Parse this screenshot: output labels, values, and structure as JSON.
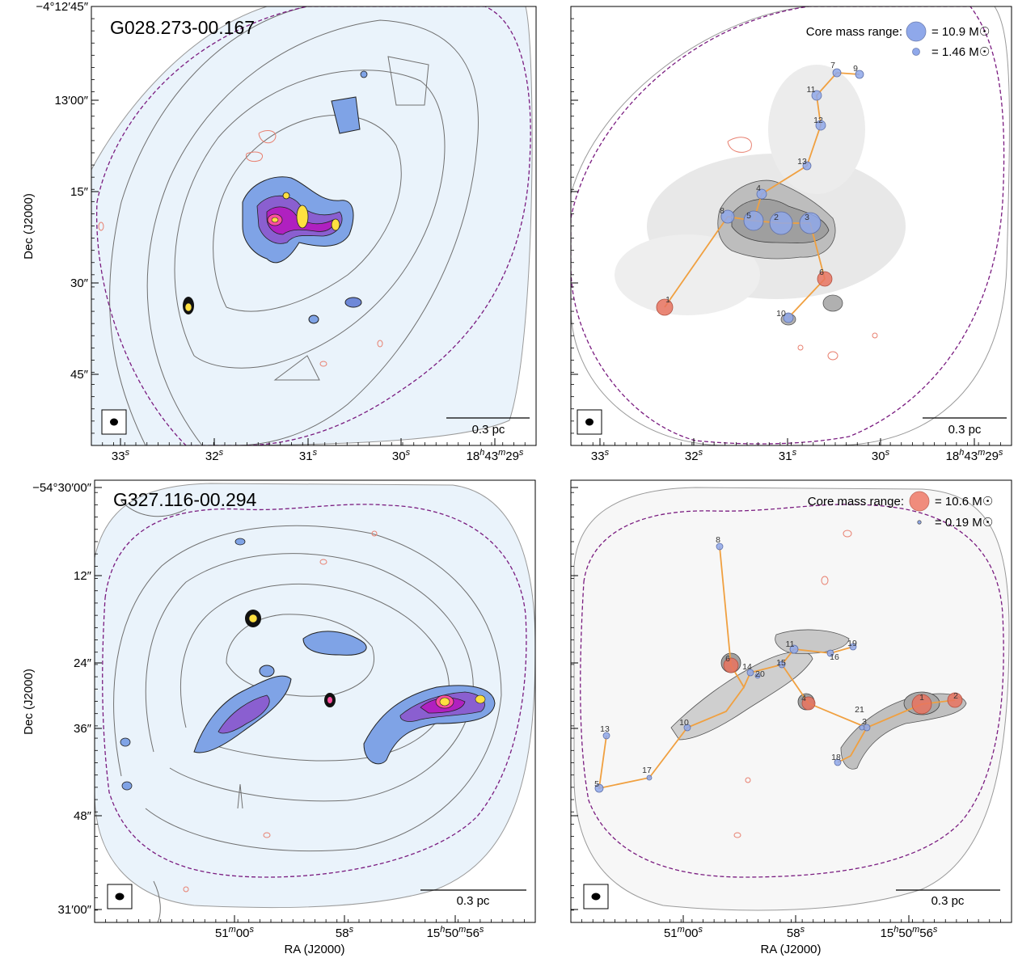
{
  "figure": {
    "panels": [
      {
        "id": "top-left",
        "title": "G028.273-00.167",
        "scalebar": "0.3 pc",
        "dec_ticks": [
          "−4°12′45″",
          "13′00″",
          "15″",
          "30″",
          "45″"
        ],
        "dec_values": [
          0,
          15,
          30,
          45,
          60
        ],
        "ra_ticks": [
          {
            "main": "33",
            "sup": "s"
          },
          {
            "main": "32",
            "sup": "s"
          },
          {
            "main": "31",
            "sup": "s"
          },
          {
            "main": "30",
            "sup": "s"
          },
          {
            "main": "18h43m29",
            "sup": "s"
          }
        ]
      },
      {
        "id": "top-right",
        "scalebar": "0.3 pc",
        "legend": {
          "label": "Core mass range:",
          "max": "= 10.9 M☉",
          "min": "= 1.46 M☉",
          "max_color": "#8fa8ea",
          "min_color": "#8fa8ea"
        },
        "ra_ticks": [
          {
            "main": "33",
            "sup": "s"
          },
          {
            "main": "32",
            "sup": "s"
          },
          {
            "main": "31",
            "sup": "s"
          },
          {
            "main": "30",
            "sup": "s"
          },
          {
            "main": "18h43m29",
            "sup": "s"
          }
        ],
        "cores": [
          {
            "id": "1",
            "color": "#e8735f"
          },
          {
            "id": "2",
            "color": "#8fa8ea"
          },
          {
            "id": "3",
            "color": "#8fa8ea"
          },
          {
            "id": "4",
            "color": "#8fa8ea"
          },
          {
            "id": "5",
            "color": "#8fa8ea"
          },
          {
            "id": "6",
            "color": "#e8735f"
          },
          {
            "id": "7",
            "color": "#8fa8ea"
          },
          {
            "id": "8",
            "color": "#8fa8ea"
          },
          {
            "id": "9",
            "color": "#8fa8ea"
          },
          {
            "id": "10",
            "color": "#8fa8ea"
          },
          {
            "id": "11",
            "color": "#8fa8ea"
          },
          {
            "id": "12",
            "color": "#8fa8ea"
          },
          {
            "id": "13",
            "color": "#8fa8ea"
          }
        ]
      },
      {
        "id": "bottom-left",
        "title": "G327.116-00.294",
        "scalebar": "0.3 pc",
        "dec_ticks": [
          "−54°30′00″",
          "12″",
          "24″",
          "36″",
          "48″",
          "31′00″"
        ],
        "dec_values": [
          0,
          12,
          24,
          36,
          48,
          60
        ],
        "ra_ticks": [
          {
            "main": "51m00",
            "sup": "s"
          },
          {
            "main": "58",
            "sup": "s"
          },
          {
            "main": "15h50m56",
            "sup": "s"
          }
        ]
      },
      {
        "id": "bottom-right",
        "scalebar": "0.3 pc",
        "legend": {
          "label": "Core mass range:",
          "max": "= 10.6 M☉",
          "min": "= 0.19 M☉",
          "max_color": "#f08c7c",
          "min_color": "#8fa8ea"
        },
        "ra_ticks": [
          {
            "main": "51m00",
            "sup": "s"
          },
          {
            "main": "58",
            "sup": "s"
          },
          {
            "main": "15h50m56",
            "sup": "s"
          }
        ],
        "cores": [
          {
            "id": "1",
            "color": "#e8735f"
          },
          {
            "id": "2",
            "color": "#e8735f"
          },
          {
            "id": "3",
            "color": "#8fa8ea"
          },
          {
            "id": "4",
            "color": "#e8735f"
          },
          {
            "id": "5",
            "color": "#8fa8ea"
          },
          {
            "id": "6",
            "color": "#e8735f"
          },
          {
            "id": "8",
            "color": "#8fa8ea"
          },
          {
            "id": "10",
            "color": "#8fa8ea"
          },
          {
            "id": "11",
            "color": "#8fa8ea"
          },
          {
            "id": "13",
            "color": "#8fa8ea"
          },
          {
            "id": "14",
            "color": "#8fa8ea"
          },
          {
            "id": "15",
            "color": "#8fa8ea"
          },
          {
            "id": "16",
            "color": "#8fa8ea"
          },
          {
            "id": "17",
            "color": "#8fa8ea"
          },
          {
            "id": "18",
            "color": "#8fa8ea"
          },
          {
            "id": "19",
            "color": "#8fa8ea"
          },
          {
            "id": "20",
            "color": "#8fa8ea"
          },
          {
            "id": "21",
            "color": "#8fa8ea"
          }
        ]
      }
    ],
    "ylabel": "Dec (J2000)",
    "xlabel": "RA (J2000)",
    "colors": {
      "mst_line": "#f0a040",
      "fov_dashed": "#7a1c80",
      "red_contour": "#e88070",
      "bg_blue": "#e6f0fa"
    }
  }
}
